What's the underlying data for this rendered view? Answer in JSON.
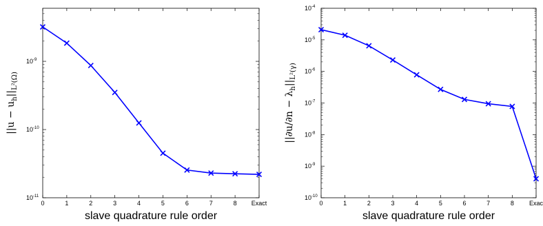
{
  "chart_data": [
    {
      "type": "line",
      "categories": [
        "0",
        "1",
        "2",
        "3",
        "4",
        "5",
        "6",
        "7",
        "8",
        "Exact"
      ],
      "series": [
        {
          "values": [
            3.2e-09,
            1.85e-09,
            8.7e-10,
            3.5e-10,
            1.25e-10,
            4.5e-11,
            2.55e-11,
            2.3e-11,
            2.25e-11,
            2.2e-11
          ],
          "color": "#0000ff",
          "marker": "x"
        }
      ],
      "xlabel": "slave quadrature rule order",
      "ylabel": {
        "main": "||u − u",
        "sub": "h",
        "tail": "||",
        "norm": "L²(Ω)"
      },
      "yscale": "log",
      "ylim": [
        1e-11,
        6e-09
      ],
      "yticks": [
        {
          "value": 1e-11,
          "base": "10",
          "exp": "-11"
        },
        {
          "value": 1e-10,
          "base": "10",
          "exp": "-10"
        },
        {
          "value": 1e-09,
          "base": "10",
          "exp": "-9"
        }
      ],
      "grid": false
    },
    {
      "type": "line",
      "categories": [
        "0",
        "1",
        "2",
        "3",
        "4",
        "5",
        "6",
        "7",
        "8",
        "Exac"
      ],
      "series": [
        {
          "values": [
            2.1e-05,
            1.4e-05,
            6.5e-06,
            2.3e-06,
            7.8e-07,
            2.7e-07,
            1.3e-07,
            9.5e-08,
            7.8e-08,
            4e-10
          ],
          "color": "#0000ff",
          "marker": "x"
        }
      ],
      "xlabel": "slave quadrature rule order",
      "ylabel": {
        "main": "||∂u/∂n − λ",
        "sub": "h",
        "tail": "||",
        "norm": "L²(γ)"
      },
      "yscale": "log",
      "ylim": [
        1e-10,
        0.0001
      ],
      "yticks": [
        {
          "value": 1e-10,
          "base": "10",
          "exp": "-10"
        },
        {
          "value": 1e-09,
          "base": "10",
          "exp": "-9"
        },
        {
          "value": 1e-08,
          "base": "10",
          "exp": "-8"
        },
        {
          "value": 1e-07,
          "base": "10",
          "exp": "-7"
        },
        {
          "value": 1e-06,
          "base": "10",
          "exp": "-6"
        },
        {
          "value": 1e-05,
          "base": "10",
          "exp": "-5"
        },
        {
          "value": 0.0001,
          "base": "10",
          "exp": "-4"
        }
      ],
      "grid": false
    }
  ]
}
